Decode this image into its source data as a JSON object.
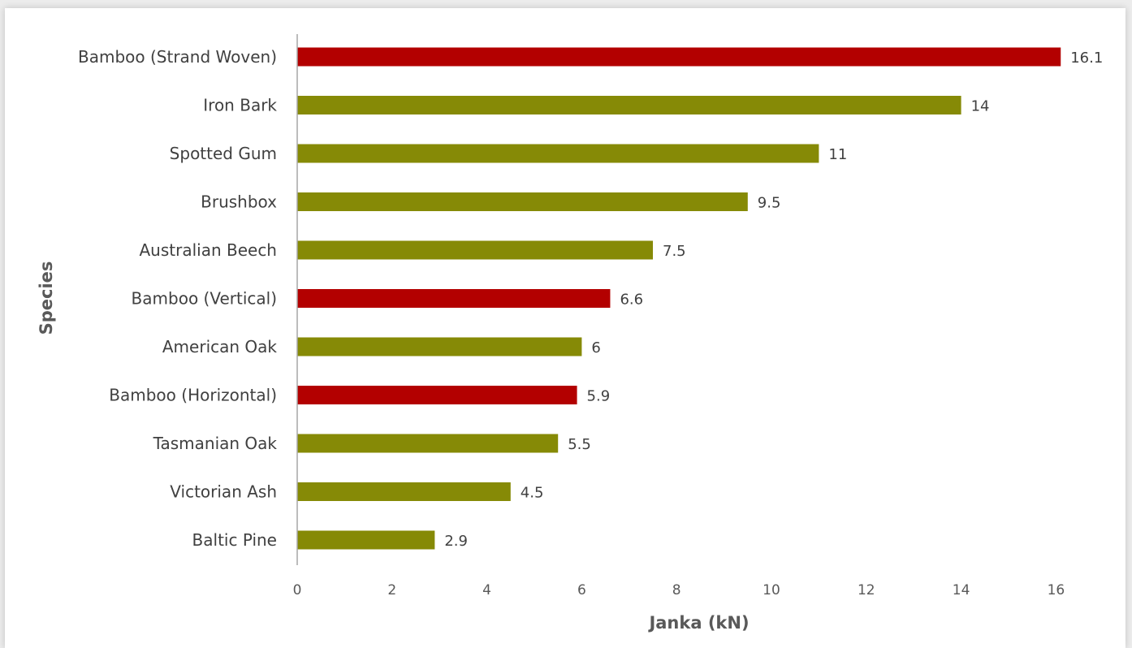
{
  "chart_data": {
    "type": "bar",
    "orientation": "horizontal",
    "title": "",
    "xlabel": "Janka (kN)",
    "ylabel": "Species",
    "xlim": [
      0,
      16
    ],
    "x_ticks": [
      0,
      2,
      4,
      6,
      8,
      10,
      12,
      14,
      16
    ],
    "grid": false,
    "legend": "none",
    "categories": [
      "Bamboo (Strand Woven)",
      "Iron Bark",
      "Spotted Gum",
      "Brushbox",
      "Australian Beech",
      "Bamboo (Vertical)",
      "American Oak",
      "Bamboo (Horizontal)",
      "Tasmanian Oak",
      "Victorian Ash",
      "Baltic Pine"
    ],
    "values": [
      16.1,
      14,
      11,
      9.5,
      7.5,
      6.6,
      6,
      5.9,
      5.5,
      4.5,
      2.9
    ],
    "value_labels": [
      "16.1",
      "14",
      "11",
      "9.5",
      "7.5",
      "6.6",
      "6",
      "5.9",
      "5.5",
      "4.5",
      "2.9"
    ],
    "highlight_categories": [
      "Bamboo (Strand Woven)",
      "Bamboo (Vertical)",
      "Bamboo (Horizontal)"
    ],
    "colors": {
      "bar_default": "#868a06",
      "bar_highlight": "#b30000",
      "axis_line": "#a6a6a6"
    }
  }
}
